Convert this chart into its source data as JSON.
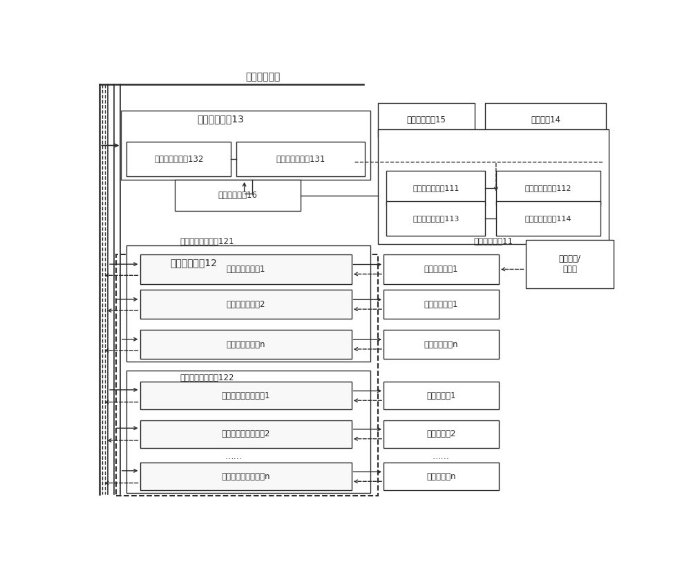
{
  "bg_color": "#ffffff",
  "lc": "#2a2a2a",
  "title_top": "公共供電線路",
  "module13": "供電管理模塊13",
  "module132": "電路監測子模塊132",
  "module131": "電源控制子模塊131",
  "module16": "備份電源模塊16",
  "module12": "通用接口模塊12",
  "module121": "低功率通用接口組121",
  "module122": "高功率通用接口組122",
  "low_iface1": "低功率通用接口1",
  "low_iface2": "低功率通用接口2",
  "low_ifacen": "低功率通用接口n",
  "high_iface1": "高功率通用接口模塊1",
  "high_iface2": "高功率通用接口模塊2",
  "high_ifacen": "高功率通用接口模塊n",
  "module15": "身份信息標識15",
  "module14": "固接組件14",
  "module11": "信息管理模塊11",
  "module111": "身份信息子模塊111",
  "module112": "信息處理子模塊112",
  "module113": "通信控制子模塊113",
  "module114": "數據存儲子模塊114",
  "net1": "網絡通信設備1",
  "term1": "終端功能設備1",
  "termn": "終端功能設備n",
  "pwr1": "電源適配器1",
  "pwr2": "電源適配器2",
  "pwrn": "電源適配器n",
  "wan": "廣域互聯/\n物聯網",
  "dots": "……"
}
